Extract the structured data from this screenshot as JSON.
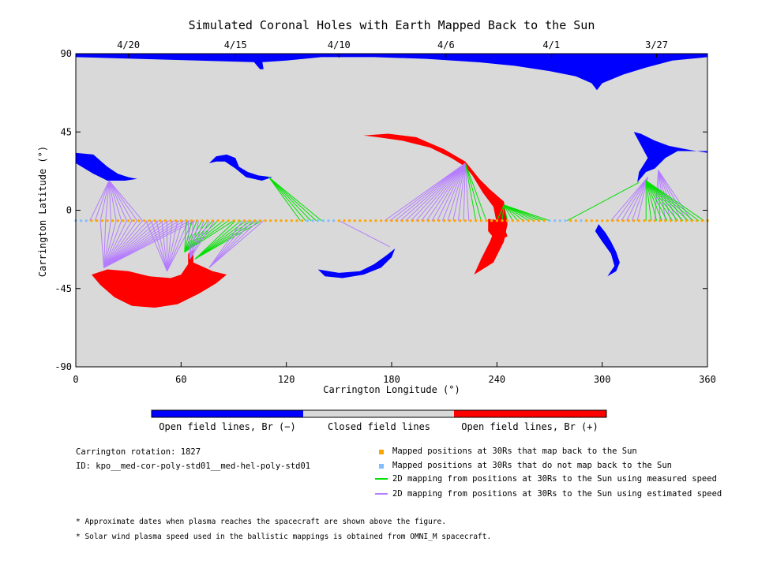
{
  "chart_data": {
    "type": "map",
    "title": "Simulated Coronal Holes with Earth Mapped Back to the Sun",
    "xlabel": "Carrington Longitude (°)",
    "ylabel": "Carrington Latitude (°)",
    "xlim": [
      0,
      360
    ],
    "ylim": [
      -90,
      90
    ],
    "xticks": [
      0,
      60,
      120,
      180,
      240,
      300,
      360
    ],
    "yticks": [
      -90,
      -45,
      0,
      45,
      90
    ],
    "top_date_labels": [
      {
        "label": "4/20",
        "lon": 30
      },
      {
        "label": "4/15",
        "lon": 91
      },
      {
        "label": "4/10",
        "lon": 150
      },
      {
        "label": "4/6",
        "lon": 211
      },
      {
        "label": "4/1",
        "lon": 271
      },
      {
        "label": "3/27",
        "lon": 331
      }
    ],
    "colors": {
      "negative": "#0000ff",
      "closed": "#d9d9d9",
      "positive": "#ff0000",
      "mapped": "#ffa500",
      "unmapped": "#7fbfff",
      "measured": "#00e000",
      "estimated": "#b57cff"
    },
    "colorbar_labels": {
      "negative": "Open field lines, Br (−)",
      "closed": "Closed field lines",
      "positive": "Open field lines, Br (+)"
    },
    "coronal_holes": [
      {
        "polarity": "negative",
        "region": "north polar cap",
        "lon_range": [
          0,
          360
        ],
        "lat_range": [
          65,
          90
        ]
      },
      {
        "polarity": "negative",
        "region": "north extension",
        "lon_range": [
          318,
          360
        ],
        "lat_range": [
          15,
          45
        ]
      },
      {
        "polarity": "negative",
        "region": "low latitude",
        "lon_range": [
          0,
          35
        ],
        "lat_range": [
          17,
          33
        ]
      },
      {
        "polarity": "negative",
        "region": "low latitude",
        "lon_range": [
          76,
          113
        ],
        "lat_range": [
          17,
          32
        ]
      },
      {
        "polarity": "negative",
        "region": "southern arc",
        "lon_range": [
          138,
          182
        ],
        "lat_range": [
          -39,
          -22
        ]
      },
      {
        "polarity": "negative",
        "region": "southern arc",
        "lon_range": [
          295,
          310
        ],
        "lat_range": [
          -38,
          -8
        ]
      },
      {
        "polarity": "positive",
        "region": "southern large",
        "lon_range": [
          9,
          86
        ],
        "lat_range": [
          -56,
          -23
        ]
      },
      {
        "polarity": "positive",
        "region": "arc",
        "lon_range": [
          164,
          246
        ],
        "lat_range": [
          -38,
          43
        ]
      }
    ],
    "footpoint_latitude": -6,
    "footpoint_lon_range": [
      0,
      360
    ],
    "unmapped_lon_ranges": [
      [
        0,
        7
      ],
      [
        130,
        148
      ],
      [
        270,
        280
      ],
      [
        286,
        290
      ]
    ],
    "mapping_lines": [
      {
        "type": "estimated",
        "from_lon": [
          8,
          40
        ],
        "to": [
          19,
          17
        ]
      },
      {
        "type": "estimated",
        "from_lon": [
          14,
          68
        ],
        "to": [
          16,
          -33
        ]
      },
      {
        "type": "estimated",
        "from_lon": [
          40,
          68
        ],
        "to": [
          52,
          -35
        ]
      },
      {
        "type": "measured",
        "from_lon": [
          63,
          92
        ],
        "to": [
          62,
          -24
        ]
      },
      {
        "type": "estimated",
        "from_lon": [
          64,
          80
        ],
        "to": [
          65,
          -28
        ]
      },
      {
        "type": "measured",
        "from_lon": [
          91,
          107
        ],
        "to": [
          68,
          -28
        ]
      },
      {
        "type": "estimated",
        "from_lon": [
          95,
          107
        ],
        "to": [
          76,
          -33
        ]
      },
      {
        "type": "measured",
        "from_lon": [
          128,
          141
        ],
        "to": [
          110,
          19
        ]
      },
      {
        "type": "estimated",
        "from_lon": [
          150,
          150
        ],
        "to": [
          179,
          -21
        ]
      },
      {
        "type": "estimated",
        "from_lon": [
          176,
          226
        ],
        "to": [
          222,
          27
        ]
      },
      {
        "type": "measured",
        "from_lon": [
          228,
          236
        ],
        "to": [
          222,
          27
        ]
      },
      {
        "type": "measured",
        "from_lon": [
          240,
          270
        ],
        "to": [
          244,
          3
        ]
      },
      {
        "type": "measured",
        "from_lon": [
          280,
          280
        ],
        "to": [
          321,
          16
        ]
      },
      {
        "type": "estimated",
        "from_lon": [
          305,
          322
        ],
        "to": [
          326,
          19
        ]
      },
      {
        "type": "estimated",
        "from_lon": [
          330,
          352
        ],
        "to": [
          332,
          23
        ]
      },
      {
        "type": "measured",
        "from_lon": [
          325,
          360
        ],
        "to": [
          325,
          17
        ]
      }
    ]
  },
  "info": {
    "rotation": "Carrington rotation: 1827",
    "id": "ID: kpo__med-cor-poly-std01__med-hel-poly-std01"
  },
  "legend": [
    {
      "kind": "square",
      "color": "#ffa500",
      "label": "Mapped positions at 30Rs that map back to the Sun"
    },
    {
      "kind": "square",
      "color": "#7fbfff",
      "label": "Mapped positions at 30Rs that do not map back to the Sun"
    },
    {
      "kind": "line",
      "color": "#00e000",
      "label": "2D mapping from positions at 30Rs to the Sun using measured speed"
    },
    {
      "kind": "line",
      "color": "#b57cff",
      "label": "2D mapping from positions at 30Rs to the Sun using estimated speed"
    }
  ],
  "footnotes": [
    "* Approximate dates when plasma reaches the spacecraft are shown above the figure.",
    "* Solar wind plasma speed used in the ballistic mappings is obtained from OMNI_M spacecraft."
  ]
}
